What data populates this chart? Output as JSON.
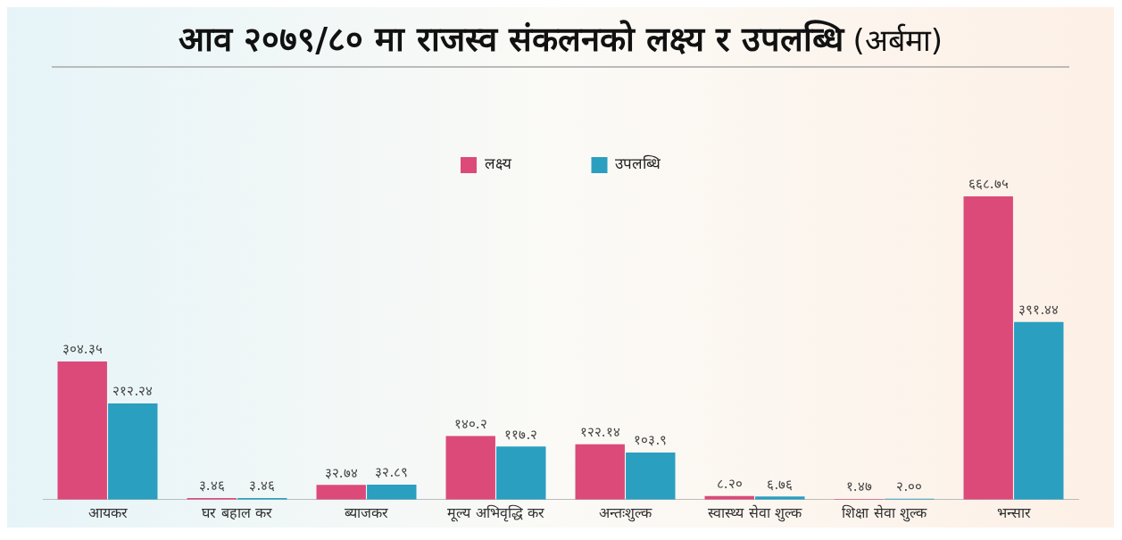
{
  "chart_data": {
    "type": "bar",
    "title": "आव २०७९/८० मा राजस्व संकलनको लक्ष्य र उपलब्धि",
    "subtitle": "(अर्बमा)",
    "categories": [
      "आयकर",
      "घर बहाल कर",
      "ब्याजकर",
      "मूल्य अभिवृद्धि कर",
      "अन्तःशुल्क",
      "स्वास्थ्य सेवा शुल्क",
      "शिक्षा सेवा शुल्क",
      "भन्सार"
    ],
    "series": [
      {
        "name": "लक्ष्य",
        "color": "#dc4a7a",
        "values": [
          304.35,
          3.46,
          32.74,
          140.2,
          122.14,
          8.2,
          1.47,
          668.75
        ],
        "value_labels": [
          "३०४.३५",
          "३.४६",
          "३२.७४",
          "१४०.२",
          "१२२.१४",
          "८.२०",
          "१.४७",
          "६६८.७५"
        ]
      },
      {
        "name": "उपलब्धि",
        "color": "#2a9fc0",
        "values": [
          212.24,
          3.46,
          32.89,
          117.2,
          103.9,
          6.76,
          2.0,
          391.44
        ],
        "value_labels": [
          "२१२.२४",
          "३.४६",
          "३२.८९",
          "११७.२",
          "१०३.९",
          "६.७६",
          "२.००",
          "३९१.४४"
        ]
      }
    ],
    "legend": "top",
    "grid": false
  }
}
